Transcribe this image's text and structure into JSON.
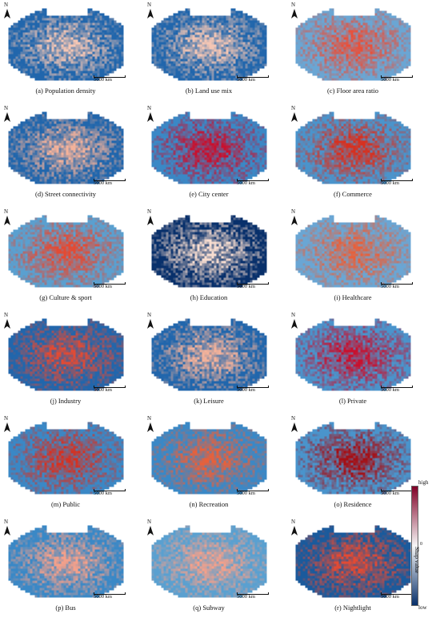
{
  "panels": [
    {
      "caption": "(a) Population density",
      "color_cool": "#2166ac",
      "color_warm": "#f4c6b4"
    },
    {
      "caption": "(b) Land use mix",
      "color_cool": "#2166ac",
      "color_warm": "#f4c6b4"
    },
    {
      "caption": "(c) Floor area ratio",
      "color_cool": "#6aa6d4",
      "color_warm": "#e8503a"
    },
    {
      "caption": "(d) Street connectivity",
      "color_cool": "#2166ac",
      "color_warm": "#f4b29a"
    },
    {
      "caption": "(e) City center",
      "color_cool": "#3a88c6",
      "color_warm": "#c8102e"
    },
    {
      "caption": "(f) Commerce",
      "color_cool": "#4a94cc",
      "color_warm": "#d7301f"
    },
    {
      "caption": "(g) Culture & sport",
      "color_cool": "#5aa0d0",
      "color_warm": "#e34a33"
    },
    {
      "caption": "(h) Education",
      "color_cool": "#08306b",
      "color_warm": "#f7ddd0"
    },
    {
      "caption": "(i) Healthcare",
      "color_cool": "#6aa6d4",
      "color_warm": "#e8603a"
    },
    {
      "caption": "(j) Industry",
      "color_cool": "#2166ac",
      "color_warm": "#e34a33"
    },
    {
      "caption": "(k) Leisure",
      "color_cool": "#2166ac",
      "color_warm": "#f4b29a"
    },
    {
      "caption": "(l) Private",
      "color_cool": "#4a94cc",
      "color_warm": "#c8102e"
    },
    {
      "caption": "(m) Public",
      "color_cool": "#3a88c6",
      "color_warm": "#d7301f"
    },
    {
      "caption": "(n) Recreation",
      "color_cool": "#3a88c6",
      "color_warm": "#e8603a"
    },
    {
      "caption": "(o) Residence",
      "color_cool": "#4a94cc",
      "color_warm": "#a50f15"
    },
    {
      "caption": "(p) Bus",
      "color_cool": "#3a88c6",
      "color_warm": "#f4a08a"
    },
    {
      "caption": "(q) Subway",
      "color_cool": "#5aa0d0",
      "color_warm": "#f4a08a"
    },
    {
      "caption": "(r) Nightlight",
      "color_cool": "#1a5a9c",
      "color_warm": "#e34a33"
    }
  ],
  "scalebar_label": "5000 km",
  "north_label": "N",
  "legend": {
    "title": "Shap value",
    "high": "high",
    "zero": "0",
    "low": "low",
    "color_high": "#800026",
    "color_mid": "#f7f7f7",
    "color_low": "#08306b"
  }
}
